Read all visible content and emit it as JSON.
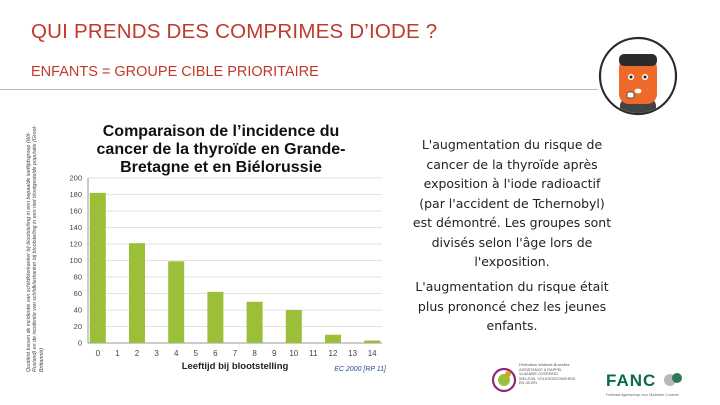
{
  "slide": {
    "title": "QUI PRENDS DES COMPRIMES D’IODE ?",
    "subtitle": "ENFANTS = GROUPE CIBLE PRIORITAIRE",
    "paragraph1": "L'augmentation du risque de cancer de la thyroïde après exposition à l'iode radioactif (par l'accident de Tchernobyl) est démontré. Les groupes sont divisés selon l'âge lors de l'exposition.",
    "paragraph2": "L'augmentation du risque était plus prononcé chez les jeunes enfants."
  },
  "chart_data": {
    "type": "bar",
    "title": "Comparaison de l’incidence du cancer de la thyroïde en Grande-Bretagne et en Biélorussie",
    "xlabel": "Leeftijd bij blootstelling",
    "ylabel_description": "Quotiënt tussen de incidentie van schildklierkanker bij blootstelling in een bepaalde leeftijdsgroep (Wit-Rusland) en de incidentie van schildklierkanker bij blootstelling in een niet blootgestelde populatie (Groot-Brittannië)",
    "source": "EC 2000 [RP 11]",
    "categories": [
      "0",
      "1",
      "2",
      "3",
      "4",
      "5",
      "6",
      "7",
      "8",
      "9",
      "10",
      "11",
      "12",
      "13",
      "14"
    ],
    "values": [
      182,
      0,
      121,
      0,
      99,
      0,
      62,
      0,
      50,
      0,
      40,
      0,
      10,
      0,
      3
    ],
    "yticks": [
      0,
      20,
      40,
      60,
      80,
      100,
      120,
      140,
      160,
      180,
      200
    ],
    "ylim": [
      0,
      200
    ],
    "bar_color": "#9cbf3a",
    "grid": true
  },
  "logos": {
    "org1_lines": [
      "Fédération Wallonie-Bruxelles",
      "ASSISTANCE & RAPPEL",
      "VLAAMSE OVERHEID",
      "WELZIJN, VOLKSGEZONDHEID",
      "EN GEZIN"
    ],
    "org2_name": "FANC",
    "org2_tagline": "Federaal Agentschap voor Nucleaire Controle"
  },
  "colors": {
    "accent": "#c0392b",
    "avatar_face": "#ee6a2a"
  }
}
